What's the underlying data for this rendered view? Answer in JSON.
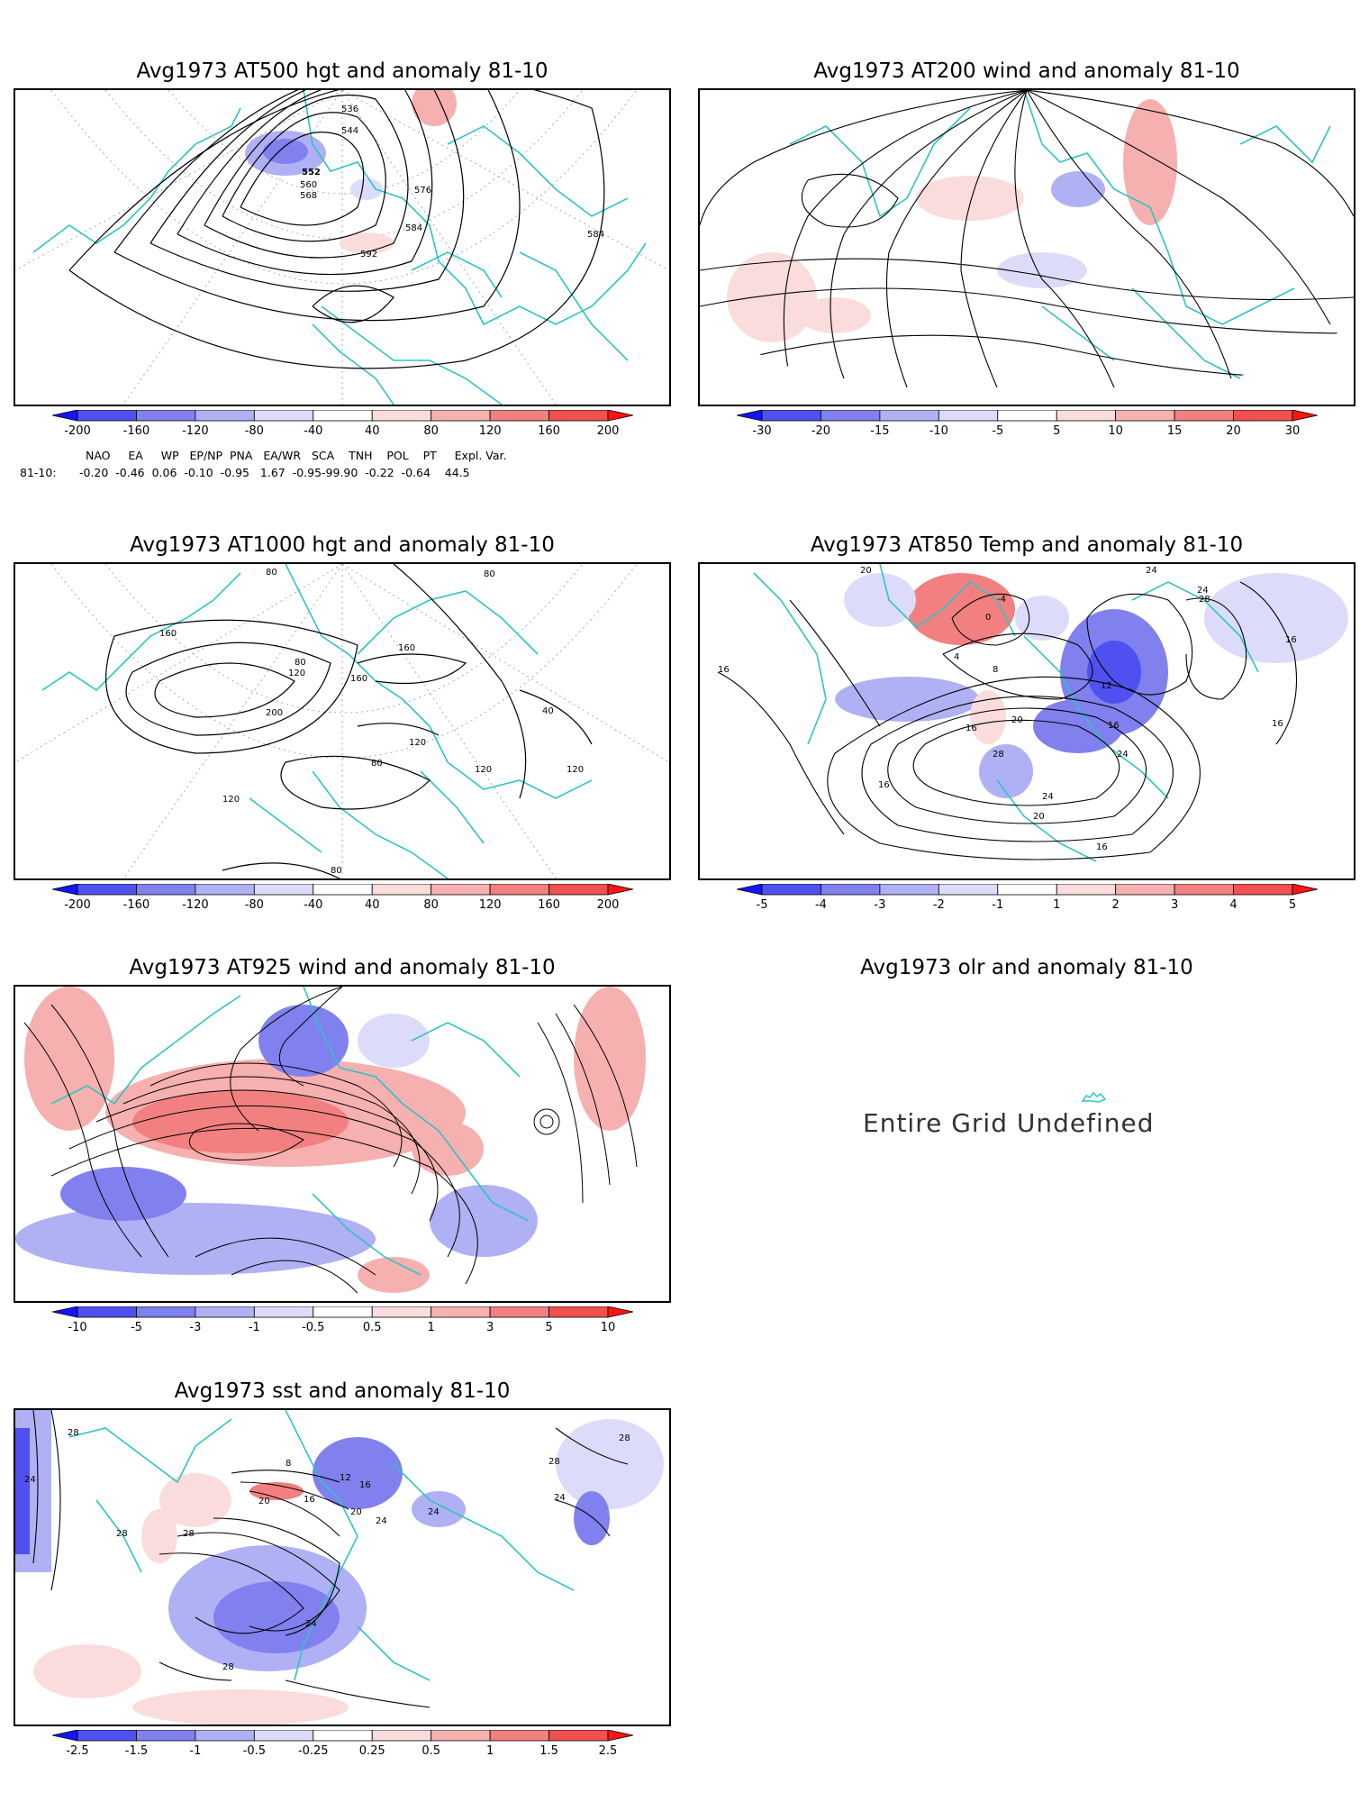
{
  "panels": [
    {
      "title": "Avg1973 AT500 hgt and anomaly 81-10",
      "colorbar": [
        "-200",
        "-160",
        "-120",
        "-80",
        "-40",
        "40",
        "80",
        "120",
        "160",
        "200"
      ],
      "contour_labels": [
        "536",
        "544",
        "552",
        "560",
        "568",
        "576",
        "584",
        "592",
        "584"
      ]
    },
    {
      "title": "Avg1973 AT200 wind and anomaly 81-10",
      "colorbar": [
        "-30",
        "-20",
        "-15",
        "-10",
        "-5",
        "5",
        "10",
        "15",
        "20",
        "30"
      ]
    },
    {
      "title": "Avg1973 AT1000 hgt and anomaly 81-10",
      "colorbar": [
        "-200",
        "-160",
        "-120",
        "-80",
        "-40",
        "40",
        "80",
        "120",
        "160",
        "200"
      ],
      "contour_labels": [
        "80",
        "80",
        "160",
        "80",
        "120",
        "160",
        "200",
        "160",
        "40",
        "120",
        "80",
        "120",
        "120",
        "120",
        "80"
      ]
    },
    {
      "title": "Avg1973 AT850 Temp and anomaly 81-10",
      "colorbar": [
        "-5",
        "-4",
        "-3",
        "-2",
        "-1",
        "1",
        "2",
        "3",
        "4",
        "5"
      ],
      "contour_labels": [
        "20",
        "24",
        "24",
        "28",
        "16",
        "-4",
        "0",
        "4",
        "8",
        "12",
        "16",
        "16",
        "20",
        "16",
        "16",
        "28",
        "24",
        "24",
        "20",
        "16",
        "16"
      ]
    },
    {
      "title": "Avg1973 AT925 wind and anomaly 81-10",
      "colorbar": [
        "-10",
        "-5",
        "-3",
        "-1",
        "-0.5",
        "0.5",
        "1",
        "3",
        "5",
        "10"
      ]
    },
    {
      "title": "Avg1973 olr and anomaly 81-10",
      "undefined_text": "Entire Grid Undefined"
    },
    {
      "title": "Avg1973 sst and anomaly 81-10",
      "colorbar": [
        "-2.5",
        "-1.5",
        "-1",
        "-0.5",
        "-0.25",
        "0.25",
        "0.5",
        "1",
        "1.5",
        "2.5"
      ],
      "contour_labels": [
        "28",
        "24",
        "28",
        "8",
        "12",
        "16",
        "20",
        "16",
        "20",
        "24",
        "24",
        "28",
        "24",
        "28",
        "28",
        "28",
        "24"
      ]
    }
  ],
  "teleconnection": {
    "header": "NAO     EA     WP   EP/NP  PNA   EA/WR   SCA    TNH    POL    PT     Expl. Var.",
    "row_label": "81-10:",
    "values": "-0.20  -0.46  0.06  -0.10  -0.95   1.67  -0.95-99.90  -0.22  -0.64    44.5"
  },
  "colors": {
    "coast": "#2ec4c4",
    "neg_scale": [
      "#1414ff",
      "#5050f0",
      "#8080ee",
      "#b0b0f4",
      "#dcdcfa"
    ],
    "pos_scale": [
      "#fadcdc",
      "#f6b0b0",
      "#f28080",
      "#f05050",
      "#ff1414"
    ]
  }
}
